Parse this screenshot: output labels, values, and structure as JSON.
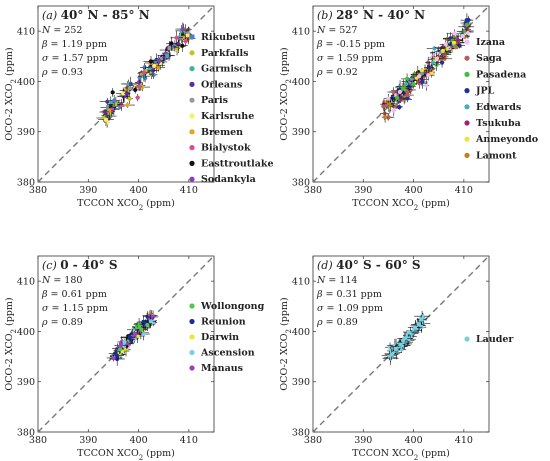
{
  "chart_data": [
    {
      "type": "scatter",
      "panel_label": "(a)",
      "title": "40° N - 85° N",
      "stats": [
        "N = 252",
        "β = 1.19 ppm",
        "σ = 1.57 ppm",
        "ρ = 0.93"
      ],
      "xlabel": "TCCON XCO2 (ppm)",
      "ylabel": "OCO-2 XCO2 (ppm)",
      "xlim": [
        380,
        415
      ],
      "ylim": [
        380,
        415
      ],
      "xticks": [
        "380",
        "390",
        "400",
        "410"
      ],
      "yticks": [
        "380",
        "390",
        "400",
        "410"
      ],
      "legend": [
        {
          "name": "Rikubetsu",
          "color": "#4a7fd4"
        },
        {
          "name": "Parkfalls",
          "color": "#c8c21a"
        },
        {
          "name": "Garmisch",
          "color": "#3bb3a8"
        },
        {
          "name": "Orleans",
          "color": "#5b2ca0"
        },
        {
          "name": "Paris",
          "color": "#9a9a9a"
        },
        {
          "name": "Karlsruhe",
          "color": "#f4f06a"
        },
        {
          "name": "Bremen",
          "color": "#e8a020"
        },
        {
          "name": "Bialystok",
          "color": "#e04a8c"
        },
        {
          "name": "Easttroutlake",
          "color": "#111111"
        },
        {
          "name": "Sodankyla",
          "color": "#8a3cc8"
        }
      ],
      "cloud": {
        "x_range": [
          393,
          410
        ],
        "spread": 1.5,
        "count": 120
      }
    },
    {
      "type": "scatter",
      "panel_label": "(b)",
      "title": "28° N - 40° N",
      "stats": [
        "N = 527",
        "β = -0.15 ppm",
        "σ = 1.59 ppm",
        "ρ = 0.92"
      ],
      "xlabel": "TCCON XCO2 (ppm)",
      "ylabel": "OCO-2 XCO2 (ppm)",
      "xlim": [
        380,
        415
      ],
      "ylim": [
        380,
        415
      ],
      "xticks": [
        "380",
        "390",
        "400",
        "410"
      ],
      "yticks": [
        "380",
        "390",
        "400",
        "410"
      ],
      "legend": [
        {
          "name": "Izana",
          "color": "#f0c0f0"
        },
        {
          "name": "Saga",
          "color": "#c05a5a"
        },
        {
          "name": "Pasadena",
          "color": "#40c040"
        },
        {
          "name": "JPL",
          "color": "#2030a0"
        },
        {
          "name": "Edwards",
          "color": "#40b0c0"
        },
        {
          "name": "Tsukuba",
          "color": "#a02080"
        },
        {
          "name": "Anmeyondo",
          "color": "#f0e040"
        },
        {
          "name": "Lamont",
          "color": "#c08020"
        }
      ],
      "cloud": {
        "x_range": [
          394,
          411
        ],
        "spread": 1.7,
        "count": 170
      }
    },
    {
      "type": "scatter",
      "panel_label": "(c)",
      "title": "0 - 40° S",
      "stats": [
        "N = 180",
        "β = 0.61 ppm",
        "σ = 1.15 ppm",
        "ρ = 0.89"
      ],
      "xlabel": "TCCON XCO2 (ppm)",
      "ylabel": "OCO-2 XCO2 (ppm)",
      "xlim": [
        380,
        415
      ],
      "ylim": [
        380,
        415
      ],
      "xticks": [
        "380",
        "390",
        "400",
        "410"
      ],
      "yticks": [
        "380",
        "390",
        "400",
        "410"
      ],
      "legend": [
        {
          "name": "Wollongong",
          "color": "#50c850"
        },
        {
          "name": "Reunion",
          "color": "#1c2c9c"
        },
        {
          "name": "Darwin",
          "color": "#e8e83a"
        },
        {
          "name": "Ascension",
          "color": "#7ad0e0"
        },
        {
          "name": "Manaus",
          "color": "#a040c0"
        }
      ],
      "cloud": {
        "x_range": [
          395,
          403
        ],
        "spread": 1.1,
        "count": 90
      }
    },
    {
      "type": "scatter",
      "panel_label": "(d)",
      "title": "40° S - 60° S",
      "stats": [
        "N = 114",
        "β = 0.31 ppm",
        "σ = 1.09 ppm",
        "ρ = 0.89"
      ],
      "xlabel": "TCCON XCO2 (ppm)",
      "ylabel": "OCO-2 XCO2 (ppm)",
      "xlim": [
        380,
        415
      ],
      "ylim": [
        380,
        415
      ],
      "xticks": [
        "380",
        "390",
        "400",
        "410"
      ],
      "yticks": [
        "380",
        "390",
        "400",
        "410"
      ],
      "legend": [
        {
          "name": "Lauder",
          "color": "#7ad0e0"
        }
      ],
      "cloud": {
        "x_range": [
          395,
          402
        ],
        "spread": 1.0,
        "count": 70
      }
    }
  ]
}
